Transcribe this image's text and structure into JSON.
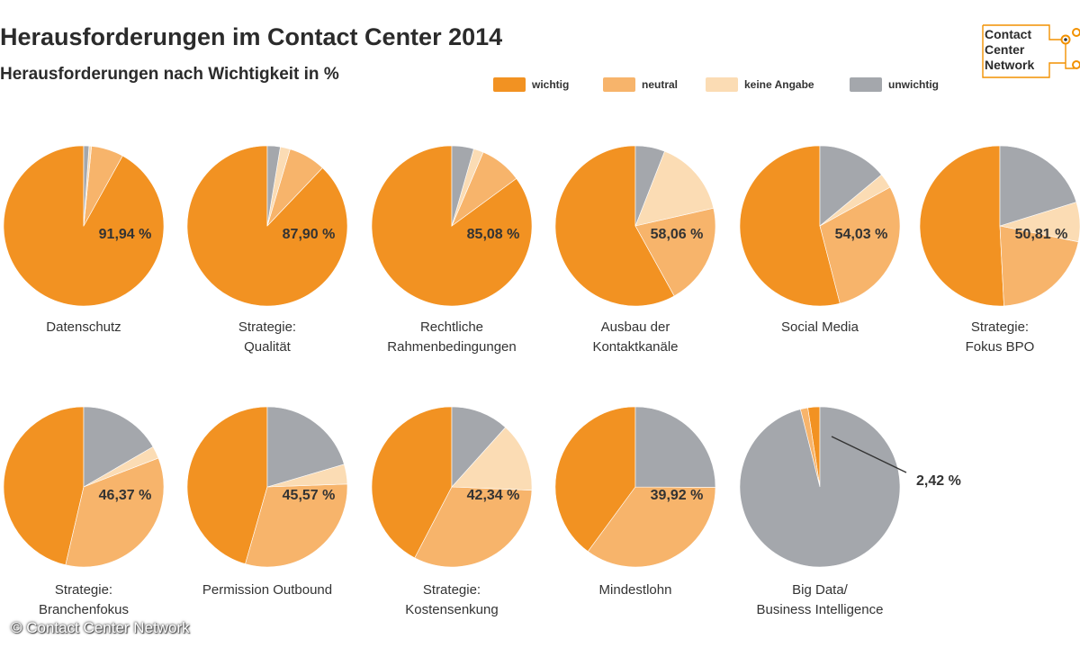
{
  "header": {
    "title": "Herausforderungen im Contact Center 2014",
    "subtitle": "Herausforderungen nach Wichtigkeit in %"
  },
  "logo": {
    "line1": "Contact",
    "line2": "Center",
    "line3": "Network",
    "color": "#f29100"
  },
  "legend": [
    {
      "label": "wichtig",
      "color": "#f29222"
    },
    {
      "label": "neutral",
      "color": "#f7b46b"
    },
    {
      "label": "keine Angabe",
      "color": "#fbdcb4"
    },
    {
      "label": "unwichtig",
      "color": "#a4a7ac"
    }
  ],
  "copyright": "© Contact Center Network",
  "chart_data": {
    "type": "pie",
    "title": "Herausforderungen im Contact Center 2014",
    "subtitle": "Herausforderungen nach Wichtigkeit in %",
    "series_names": [
      "wichtig",
      "neutral",
      "keine Angabe",
      "unwichtig"
    ],
    "series_colors": [
      "#f29222",
      "#f7b46b",
      "#fbdcb4",
      "#a4a7ac"
    ],
    "pies": [
      {
        "label_lines": [
          "Datenschutz"
        ],
        "value_label": "91,94 %",
        "values": [
          91.94,
          6.5,
          0.5,
          1.06
        ]
      },
      {
        "label_lines": [
          "Strategie:",
          "Qualität"
        ],
        "value_label": "87,90 %",
        "values": [
          87.9,
          7.5,
          2.0,
          2.6
        ]
      },
      {
        "label_lines": [
          "Rechtliche",
          "Rahmenbedingungen"
        ],
        "value_label": "85,08 %",
        "values": [
          85.08,
          8.5,
          2.0,
          4.42
        ]
      },
      {
        "label_lines": [
          "Ausbau der",
          "Kontaktkanäle"
        ],
        "value_label": "58,06 %",
        "values": [
          58.06,
          20.5,
          15.5,
          5.94
        ]
      },
      {
        "label_lines": [
          "Social Media"
        ],
        "value_label": "54,03 %",
        "values": [
          54.03,
          29.0,
          3.0,
          13.97
        ]
      },
      {
        "label_lines": [
          "Strategie:",
          "Fokus BPO"
        ],
        "value_label": "50,81 %",
        "values": [
          50.81,
          21.0,
          8.0,
          20.19
        ]
      },
      {
        "label_lines": [
          "Strategie:",
          "Branchenfokus"
        ],
        "value_label": "46,37 %",
        "values": [
          46.37,
          34.5,
          2.5,
          16.63
        ]
      },
      {
        "label_lines": [
          "Permission Outbound"
        ],
        "value_label": "45,57 %",
        "values": [
          45.57,
          30.0,
          4.0,
          20.43
        ]
      },
      {
        "label_lines": [
          "Strategie:",
          "Kostensenkung"
        ],
        "value_label": "42,34 %",
        "values": [
          42.34,
          32.0,
          14.0,
          11.66
        ]
      },
      {
        "label_lines": [
          "Mindestlohn"
        ],
        "value_label": "39,92 %",
        "values": [
          39.92,
          35.0,
          0.0,
          25.08
        ]
      },
      {
        "label_lines": [
          "Big Data/",
          "Business Intelligence"
        ],
        "value_label": "2,42 %",
        "values": [
          2.42,
          1.5,
          0.0,
          96.08
        ],
        "label_outside": true
      }
    ]
  }
}
